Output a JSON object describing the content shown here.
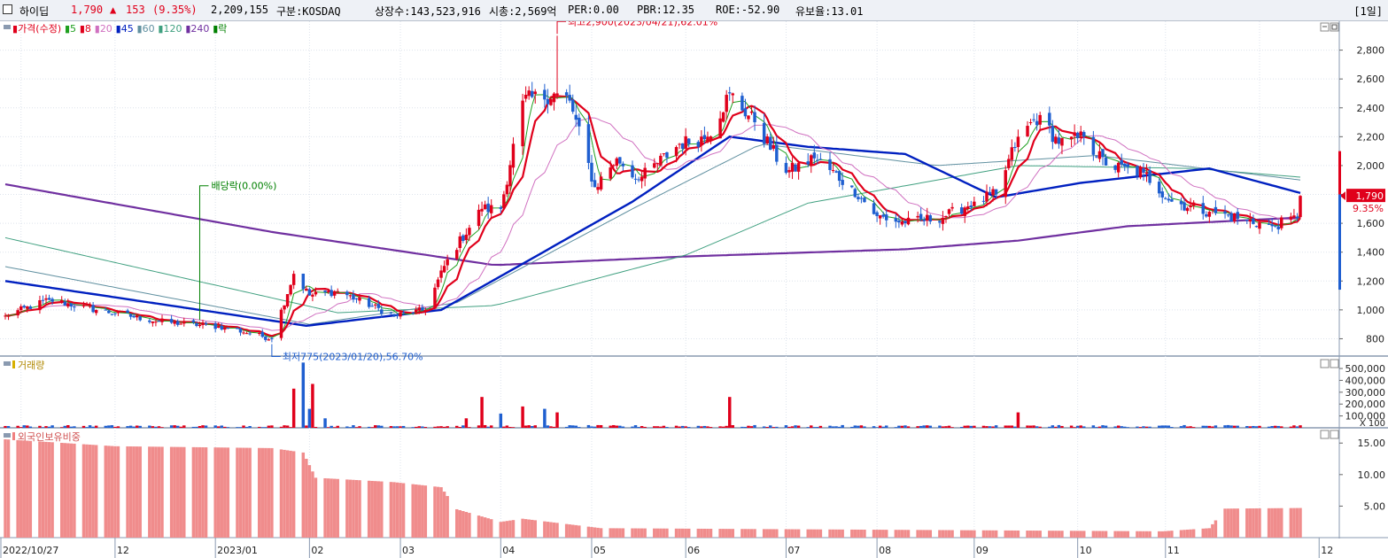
{
  "header": {
    "name": "하이딥",
    "price": "1,790",
    "change_arrow": "▲",
    "change": "153",
    "change_pct": "(9.35%)",
    "volume": "2,209,155",
    "market_label": "구분:KOSDAQ",
    "shares_label": "상장수:143,523,916",
    "mktcap_label": "시총:2,569억",
    "per_label": "PER:0.00",
    "pbr_label": "PBR:12.35",
    "roe_label": "ROE:-52.90",
    "float_label": "유보율:13.01",
    "period": "[1일]"
  },
  "price_panel": {
    "legend": [
      {
        "text": "가격(수정)",
        "color": "#e0001b"
      },
      {
        "text": "5",
        "color": "#20a020"
      },
      {
        "text": "8",
        "color": "#e0001b"
      },
      {
        "text": "20",
        "color": "#d070c0"
      },
      {
        "text": "45",
        "color": "#0020c0"
      },
      {
        "text": "60",
        "color": "#6090a0"
      },
      {
        "text": "120",
        "color": "#40a080"
      },
      {
        "text": "240",
        "color": "#7030a0"
      },
      {
        "text": "락",
        "color": "#008000"
      }
    ],
    "annotations": {
      "high": "최고2,900(2023/04/21),62.01%",
      "low": "최저775(2023/01/20),56.70%",
      "dividend": "배당락(0.00%)"
    },
    "last_price_tag": "1,790",
    "last_pct_tag": "9.35%"
  },
  "volume_panel": {
    "label": "거래량",
    "unit_label": "X 100"
  },
  "foreign_panel": {
    "label": "외국인보유비중"
  },
  "x_axis": {
    "labels": [
      "2022/10/27",
      "12",
      "2023/01",
      "02",
      "03",
      "04",
      "05",
      "06",
      "07",
      "08",
      "09",
      "10",
      "11",
      "12"
    ]
  },
  "chart_data": {
    "type": "candlestick",
    "title": "하이딥",
    "price_axis": {
      "ticks": [
        800,
        1000,
        1200,
        1400,
        1600,
        1800,
        2000,
        2200,
        2400,
        2600,
        2800
      ],
      "tick_labels": [
        "800",
        "1,000",
        "1,200",
        "1,400",
        "1,600",
        "1,800",
        "2,000",
        "2,200",
        "2,400",
        "2,600",
        "2,800"
      ],
      "ylim": [
        680,
        3000
      ]
    },
    "high": {
      "value": 2900,
      "date": "2023/04/21",
      "pct": 62.01
    },
    "low": {
      "value": 775,
      "date": "2023/01/20",
      "pct": 56.7
    },
    "last_close": 1790,
    "close_anchors": [
      [
        "2022-10-27",
        960
      ],
      [
        "2022-11-10",
        1070
      ],
      [
        "2022-11-25",
        1000
      ],
      [
        "2022-12-15",
        920
      ],
      [
        "2023-01-05",
        880
      ],
      [
        "2023-01-20",
        800
      ],
      [
        "2023-01-27",
        1250
      ],
      [
        "2023-02-01",
        1100
      ],
      [
        "2023-02-10",
        1130
      ],
      [
        "2023-02-28",
        960
      ],
      [
        "2023-03-10",
        1000
      ],
      [
        "2023-03-17",
        1350
      ],
      [
        "2023-03-28",
        1700
      ],
      [
        "2023-04-03",
        1700
      ],
      [
        "2023-04-10",
        2450
      ],
      [
        "2023-04-21",
        2500
      ],
      [
        "2023-04-25",
        2450
      ],
      [
        "2023-05-03",
        1850
      ],
      [
        "2023-05-10",
        2050
      ],
      [
        "2023-05-17",
        1900
      ],
      [
        "2023-05-30",
        2150
      ],
      [
        "2023-06-08",
        2200
      ],
      [
        "2023-06-15",
        2500
      ],
      [
        "2023-06-23",
        2300
      ],
      [
        "2023-07-03",
        1950
      ],
      [
        "2023-07-12",
        2050
      ],
      [
        "2023-07-24",
        1850
      ],
      [
        "2023-08-01",
        1650
      ],
      [
        "2023-08-10",
        1600
      ],
      [
        "2023-08-23",
        1650
      ],
      [
        "2023-09-01",
        1750
      ],
      [
        "2023-09-08",
        1800
      ],
      [
        "2023-09-15",
        2200
      ],
      [
        "2023-09-22",
        2350
      ],
      [
        "2023-09-28",
        2150
      ],
      [
        "2023-10-06",
        2200
      ],
      [
        "2023-10-13",
        2000
      ],
      [
        "2023-10-25",
        1950
      ],
      [
        "2023-11-03",
        1750
      ],
      [
        "2023-11-15",
        1680
      ],
      [
        "2023-11-27",
        1620
      ],
      [
        "2023-12-05",
        1580
      ],
      [
        "2023-12-13",
        1637
      ],
      [
        "2023-12-14",
        1790
      ]
    ],
    "moving_averages": {
      "ma240": [
        [
          "2022-10-27",
          1870
        ],
        [
          "2023-01-20",
          1540
        ],
        [
          "2023-04-01",
          1310
        ],
        [
          "2023-06-01",
          1370
        ],
        [
          "2023-08-10",
          1420
        ],
        [
          "2023-09-15",
          1480
        ],
        [
          "2023-10-20",
          1580
        ],
        [
          "2023-12-14",
          1640
        ]
      ],
      "ma120": [
        [
          "2022-10-27",
          1500
        ],
        [
          "2023-02-10",
          980
        ],
        [
          "2023-04-01",
          1030
        ],
        [
          "2023-06-01",
          1380
        ],
        [
          "2023-07-10",
          1740
        ],
        [
          "2023-09-15",
          2000
        ],
        [
          "2023-11-10",
          1980
        ],
        [
          "2023-12-14",
          1920
        ]
      ],
      "ma60": [
        [
          "2022-10-27",
          1300
        ],
        [
          "2023-02-01",
          900
        ],
        [
          "2023-03-20",
          1050
        ],
        [
          "2023-05-15",
          1700
        ],
        [
          "2023-06-25",
          2150
        ],
        [
          "2023-08-20",
          2000
        ],
        [
          "2023-10-10",
          2070
        ],
        [
          "2023-12-14",
          1900
        ]
      ],
      "ma45": [
        [
          "2022-10-27",
          1200
        ],
        [
          "2023-01-31",
          890
        ],
        [
          "2023-03-15",
          1000
        ],
        [
          "2023-05-15",
          1750
        ],
        [
          "2023-06-15",
          2200
        ],
        [
          "2023-07-10",
          2130
        ],
        [
          "2023-08-10",
          2080
        ],
        [
          "2023-09-08",
          1780
        ],
        [
          "2023-10-05",
          1880
        ],
        [
          "2023-11-15",
          1980
        ],
        [
          "2023-12-14",
          1810
        ]
      ]
    },
    "volume": {
      "type": "bar",
      "unit": "X 100",
      "ticks": [
        100000,
        200000,
        300000,
        400000,
        500000
      ],
      "tick_labels": [
        "100,000",
        "200,000",
        "300,000",
        "400,000",
        "500,000"
      ],
      "ylim": [
        0,
        560000
      ],
      "spikes": [
        [
          "2023-01-27",
          330000
        ],
        [
          "2023-01-30",
          550000
        ],
        [
          "2023-02-01",
          160000
        ],
        [
          "2023-02-02",
          370000
        ],
        [
          "2023-02-06",
          80000
        ],
        [
          "2023-03-23",
          80000
        ],
        [
          "2023-03-28",
          260000
        ],
        [
          "2023-04-03",
          120000
        ],
        [
          "2023-04-10",
          180000
        ],
        [
          "2023-04-17",
          160000
        ],
        [
          "2023-04-21",
          130000
        ],
        [
          "2023-06-15",
          260000
        ],
        [
          "2023-09-15",
          130000
        ]
      ]
    },
    "foreign_ratio": {
      "type": "bar",
      "unit": "%",
      "ticks": [
        5,
        10,
        15
      ],
      "tick_labels": [
        "5.00",
        "10.00",
        "15.00"
      ],
      "ylim": [
        0,
        17
      ],
      "anchors": [
        [
          "2022-10-27",
          15.6
        ],
        [
          "2022-12-01",
          14.5
        ],
        [
          "2023-01-20",
          14.2
        ],
        [
          "2023-01-30",
          13.5
        ],
        [
          "2023-02-03",
          9.5
        ],
        [
          "2023-02-28",
          8.8
        ],
        [
          "2023-03-15",
          8.0
        ],
        [
          "2023-03-20",
          4.5
        ],
        [
          "2023-04-03",
          2.5
        ],
        [
          "2023-04-10",
          3.0
        ],
        [
          "2023-05-05",
          1.5
        ],
        [
          "2023-10-31",
          1.0
        ],
        [
          "2023-11-15",
          1.5
        ],
        [
          "2023-11-20",
          4.6
        ],
        [
          "2023-12-14",
          4.7
        ]
      ]
    }
  }
}
